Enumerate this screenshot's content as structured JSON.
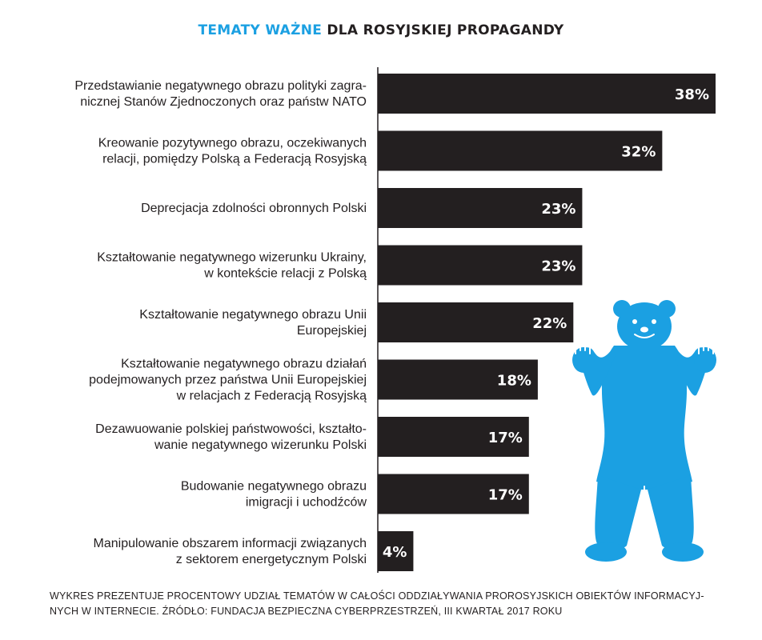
{
  "title": {
    "highlight": "TEMATY WAŻNE",
    "rest": " DLA ROSYJSKIEJ PROPAGANDY"
  },
  "chart_data": {
    "type": "bar",
    "orientation": "horizontal",
    "title": "TEMATY WAŻNE DLA ROSYJSKIEJ PROPAGANDY",
    "categories": [
      [
        "Przedstawianie negatywnego obrazu polityki zagra-",
        "nicznej Stanów Zjednoczonych oraz państw NATO"
      ],
      [
        "Kreowanie pozytywnego obrazu, oczekiwanych",
        "relacji, pomiędzy Polską a Federacją Rosyjską"
      ],
      [
        "Deprecjacja zdolności obronnych Polski"
      ],
      [
        "Kształtowanie negatywnego wizerunku Ukrainy,",
        "w kontekście relacji z Polską"
      ],
      [
        "Kształtowanie negatywnego obrazu Unii",
        "Europejskiej"
      ],
      [
        "Kształtowanie negatywnego obrazu działań",
        "podejmowanych przez państwa Unii Europejskiej",
        "w relacjach z Federacją Rosyjską"
      ],
      [
        "Dezawuowanie polskiej państwowości, kształto-",
        "wanie negatywnego wizerunku Polski"
      ],
      [
        "Budowanie negatywnego obrazu",
        "imigracji i uchodźców"
      ],
      [
        "Manipulowanie obszarem informacji związanych",
        "z sektorem energetycznym Polski"
      ]
    ],
    "values": [
      38,
      32,
      23,
      23,
      22,
      18,
      17,
      17,
      4
    ],
    "value_labels": [
      "38%",
      "32%",
      "23%",
      "23%",
      "22%",
      "18%",
      "17%",
      "17%",
      "4%"
    ],
    "xlim": [
      0,
      38
    ],
    "grid": false,
    "legend": "none",
    "bar_color": "#231f20",
    "label_color": "#ffffff"
  },
  "colors": {
    "accent": "#1ba0e2",
    "bar": "#231f20"
  },
  "footnote": {
    "line1": "WYKRES PREZENTUJE PROCENTOWY UDZIAŁ TEMATÓW W CAŁOŚCI ODDZIAŁYWANIA PROROSYJSKICH OBIEKTÓW INFORMACYJ-",
    "line2": "NYCH W INTERNECIE. ŹRÓDŁO: FUNDACJA BEZPIECZNA CYBERPRZESTRZEŃ, III KWARTAŁ 2017 ROKU"
  },
  "illustration": "bear-icon"
}
